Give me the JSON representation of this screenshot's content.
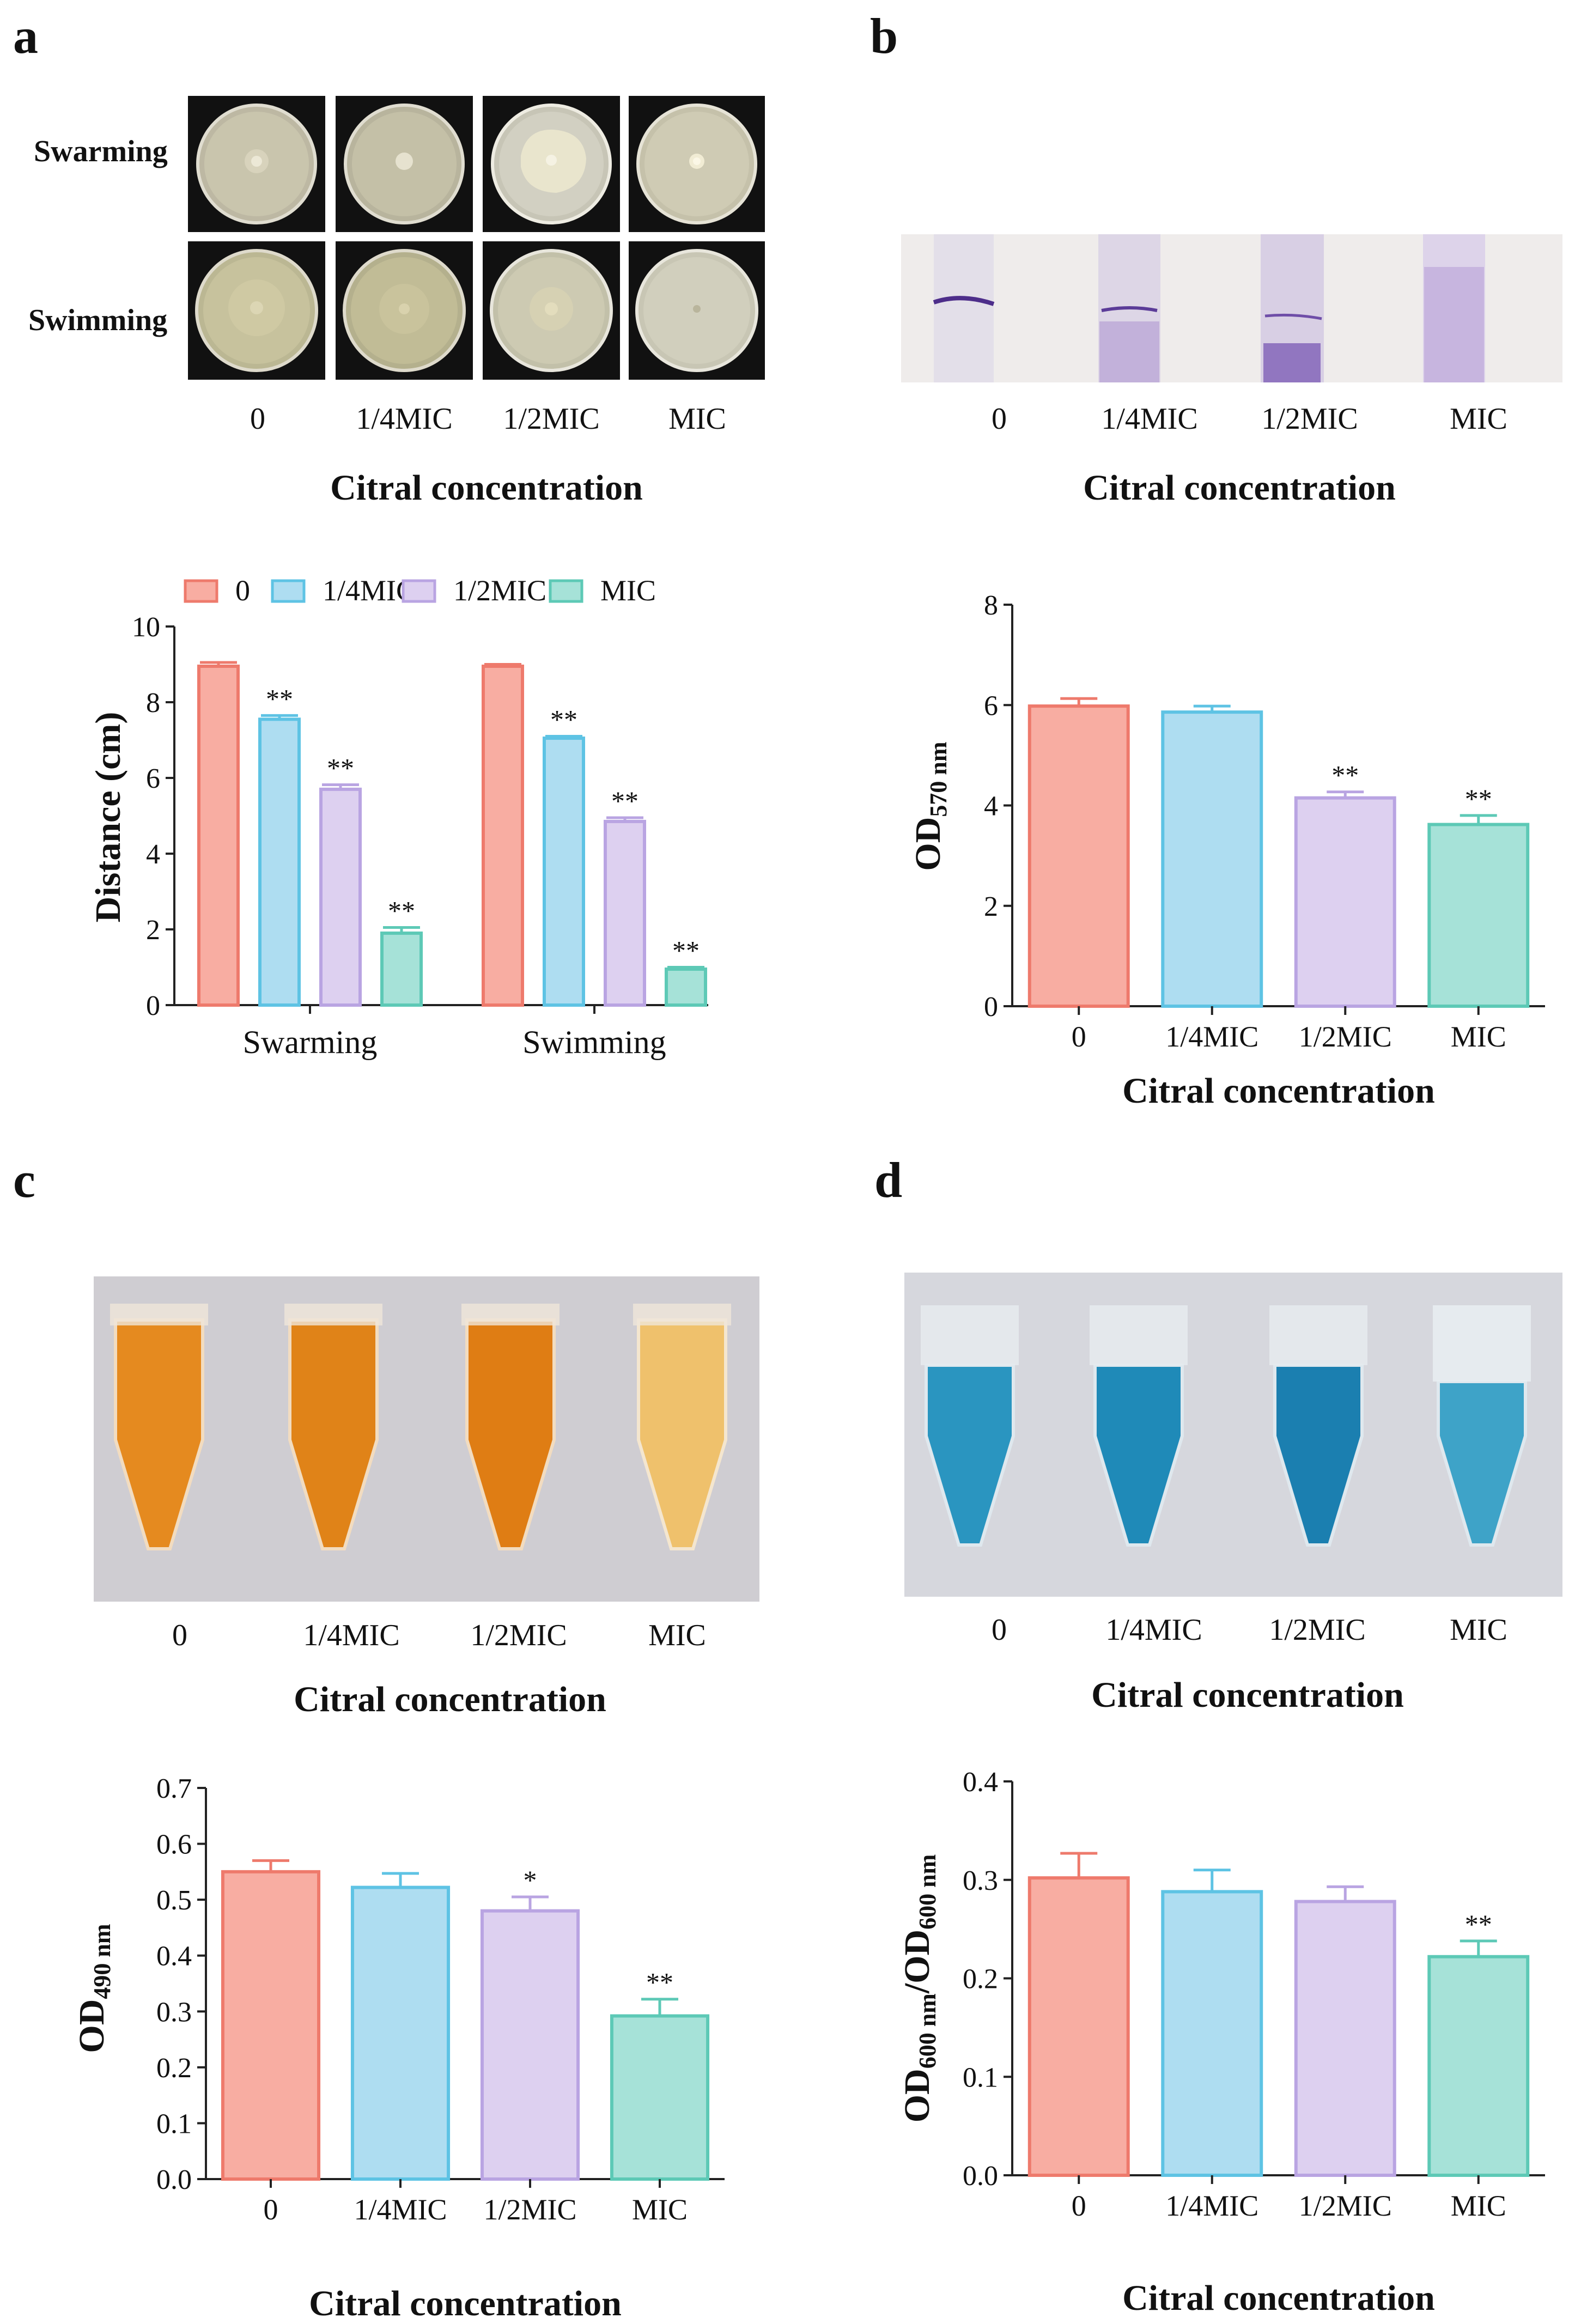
{
  "panels": {
    "a": {
      "letter": "a",
      "photo_rows": [
        "Swarming",
        "Swimming"
      ],
      "concentrations": [
        "0",
        "1/4MIC",
        "1/2MIC",
        "MIC"
      ],
      "xtitle": "Citral concentration"
    },
    "b": {
      "letter": "b",
      "concentrations": [
        "0",
        "1/4MIC",
        "1/2MIC",
        "MIC"
      ],
      "xtitle": "Citral concentration"
    },
    "c": {
      "letter": "c",
      "concentrations": [
        "0",
        "1/4MIC",
        "1/2MIC",
        "MIC"
      ],
      "xtitle": "Citral concentration"
    },
    "d": {
      "letter": "d",
      "concentrations": [
        "0",
        "1/4MIC",
        "1/2MIC",
        "MIC"
      ],
      "xtitle": "Citral concentration"
    }
  },
  "colors": {
    "c0_fill": "#F8ADA2",
    "c0_stroke": "#EE7A6C",
    "c1_fill": "#AEDDF1",
    "c1_stroke": "#5EC3E4",
    "c2_fill": "#DDD0F0",
    "c2_stroke": "#B9A4E2",
    "c3_fill": "#A6E2D8",
    "c3_stroke": "#5DC9B6",
    "tube_c": "#E58A1F",
    "tube_d": "#1F8FB8",
    "crystal": "#9A6BC2"
  },
  "chart_data": [
    {
      "id": "a",
      "type": "bar",
      "categories": [
        "Swarming",
        "Swimming"
      ],
      "series": [
        {
          "name": "0",
          "values": [
            8.95,
            8.95
          ],
          "errors": [
            0.1,
            0.05
          ],
          "sig": [
            "",
            ""
          ]
        },
        {
          "name": "1/4MIC",
          "values": [
            7.55,
            7.05
          ],
          "errors": [
            0.1,
            0.05
          ],
          "sig": [
            "**",
            "**"
          ]
        },
        {
          "name": "1/2MIC",
          "values": [
            5.7,
            4.85
          ],
          "errors": [
            0.12,
            0.1
          ],
          "sig": [
            "**",
            "**"
          ]
        },
        {
          "name": "MIC",
          "values": [
            1.9,
            0.95
          ],
          "errors": [
            0.15,
            0.05
          ],
          "sig": [
            "**",
            "**"
          ]
        }
      ],
      "ylabel": "Distance (cm)",
      "ylim": [
        0,
        10
      ],
      "yticks": [
        "0",
        "2",
        "4",
        "6",
        "8",
        "10"
      ],
      "legend": "top"
    },
    {
      "id": "b",
      "type": "bar",
      "categories": [
        "0",
        "1/4MIC",
        "1/2MIC",
        "MIC"
      ],
      "values": [
        5.98,
        5.86,
        4.15,
        3.62
      ],
      "errors": [
        0.15,
        0.12,
        0.12,
        0.18
      ],
      "sig": [
        "",
        "",
        "**",
        "**"
      ],
      "ylabel_main": "OD",
      "ylabel_sub": "570 nm",
      "ylim": [
        0,
        8
      ],
      "yticks": [
        "0",
        "2",
        "4",
        "6",
        "8"
      ],
      "xlabel": "Citral concentration"
    },
    {
      "id": "c",
      "type": "bar",
      "categories": [
        "0",
        "1/4MIC",
        "1/2MIC",
        "MIC"
      ],
      "values": [
        0.55,
        0.522,
        0.48,
        0.292
      ],
      "errors": [
        0.02,
        0.025,
        0.025,
        0.03
      ],
      "sig": [
        "",
        "",
        "*",
        "**"
      ],
      "ylabel_main": "OD",
      "ylabel_sub": "490 nm",
      "ylim": [
        0,
        0.7
      ],
      "yticks": [
        "0.0",
        "0.1",
        "0.2",
        "0.3",
        "0.4",
        "0.5",
        "0.6",
        "0.7"
      ],
      "xlabel": "Citral concentration"
    },
    {
      "id": "d",
      "type": "bar",
      "categories": [
        "0",
        "1/4MIC",
        "1/2MIC",
        "MIC"
      ],
      "values": [
        0.302,
        0.288,
        0.278,
        0.222
      ],
      "errors": [
        0.025,
        0.022,
        0.015,
        0.016
      ],
      "sig": [
        "",
        "",
        "",
        "**"
      ],
      "ylabel_main": "OD",
      "ylabel_sub": "600 nm",
      "ylabel_main2": "/OD",
      "ylabel_sub2": "600 nm",
      "ylim": [
        0,
        0.4
      ],
      "yticks": [
        "0.0",
        "0.1",
        "0.2",
        "0.3",
        "0.4"
      ],
      "xlabel": "Citral concentration"
    }
  ]
}
